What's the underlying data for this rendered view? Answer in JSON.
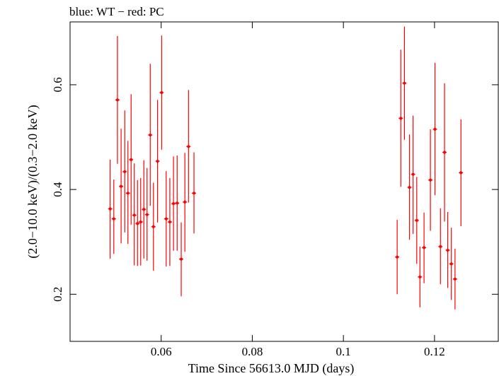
{
  "chart_data": {
    "type": "scatter",
    "title": "blue: WT − red: PC",
    "xlabel": "Time Since 56613.0 MJD (days)",
    "ylabel": "(2.0−10.0 keV)/(0.3−2.0 keV)",
    "xlim": [
      0.04,
      0.134
    ],
    "ylim": [
      0.11,
      0.72
    ],
    "xticks": [
      {
        "value": 0.06,
        "label": "0.06"
      },
      {
        "value": 0.08,
        "label": "0.08"
      },
      {
        "value": 0.1,
        "label": "0.1"
      },
      {
        "value": 0.12,
        "label": "0.12"
      }
    ],
    "yticks": [
      {
        "value": 0.2,
        "label": "0.2"
      },
      {
        "value": 0.4,
        "label": "0.4"
      },
      {
        "value": 0.6,
        "label": "0.6"
      }
    ],
    "grid": false,
    "series": [
      {
        "color": "#ff0000",
        "points": [
          {
            "x": 0.0488,
            "y": 0.363,
            "lo": 0.268,
            "hi": 0.457
          },
          {
            "x": 0.0496,
            "y": 0.344,
            "lo": 0.277,
            "hi": 0.419
          },
          {
            "x": 0.0504,
            "y": 0.571,
            "lo": 0.449,
            "hi": 0.693
          },
          {
            "x": 0.0512,
            "y": 0.406,
            "lo": 0.297,
            "hi": 0.516
          },
          {
            "x": 0.052,
            "y": 0.434,
            "lo": 0.318,
            "hi": 0.551
          },
          {
            "x": 0.0527,
            "y": 0.393,
            "lo": 0.296,
            "hi": 0.493
          },
          {
            "x": 0.0534,
            "y": 0.457,
            "lo": 0.333,
            "hi": 0.582
          },
          {
            "x": 0.0541,
            "y": 0.351,
            "lo": 0.255,
            "hi": 0.45
          },
          {
            "x": 0.0548,
            "y": 0.335,
            "lo": 0.254,
            "hi": 0.418
          },
          {
            "x": 0.0555,
            "y": 0.338,
            "lo": 0.255,
            "hi": 0.422
          },
          {
            "x": 0.0562,
            "y": 0.362,
            "lo": 0.268,
            "hi": 0.456
          },
          {
            "x": 0.0569,
            "y": 0.352,
            "lo": 0.264,
            "hi": 0.441
          },
          {
            "x": 0.0576,
            "y": 0.504,
            "lo": 0.369,
            "hi": 0.64
          },
          {
            "x": 0.0583,
            "y": 0.329,
            "lo": 0.245,
            "hi": 0.413
          },
          {
            "x": 0.0592,
            "y": 0.454,
            "lo": 0.337,
            "hi": 0.571
          },
          {
            "x": 0.0601,
            "y": 0.585,
            "lo": 0.476,
            "hi": 0.694
          },
          {
            "x": 0.0611,
            "y": 0.344,
            "lo": 0.253,
            "hi": 0.435
          },
          {
            "x": 0.0619,
            "y": 0.338,
            "lo": 0.254,
            "hi": 0.422
          },
          {
            "x": 0.0627,
            "y": 0.373,
            "lo": 0.283,
            "hi": 0.463
          },
          {
            "x": 0.0635,
            "y": 0.374,
            "lo": 0.283,
            "hi": 0.465
          },
          {
            "x": 0.0644,
            "y": 0.267,
            "lo": 0.196,
            "hi": 0.337
          },
          {
            "x": 0.0652,
            "y": 0.376,
            "lo": 0.281,
            "hi": 0.47
          },
          {
            "x": 0.066,
            "y": 0.482,
            "lo": 0.375,
            "hi": 0.59
          },
          {
            "x": 0.0672,
            "y": 0.393,
            "lo": 0.316,
            "hi": 0.471
          },
          {
            "x": 0.1118,
            "y": 0.271,
            "lo": 0.2,
            "hi": 0.342
          },
          {
            "x": 0.1126,
            "y": 0.536,
            "lo": 0.405,
            "hi": 0.667
          },
          {
            "x": 0.1134,
            "y": 0.603,
            "lo": 0.495,
            "hi": 0.711
          },
          {
            "x": 0.1145,
            "y": 0.404,
            "lo": 0.304,
            "hi": 0.505
          },
          {
            "x": 0.1153,
            "y": 0.429,
            "lo": 0.315,
            "hi": 0.541
          },
          {
            "x": 0.1161,
            "y": 0.341,
            "lo": 0.258,
            "hi": 0.424
          },
          {
            "x": 0.1168,
            "y": 0.233,
            "lo": 0.175,
            "hi": 0.291
          },
          {
            "x": 0.1177,
            "y": 0.289,
            "lo": 0.221,
            "hi": 0.356
          },
          {
            "x": 0.1191,
            "y": 0.418,
            "lo": 0.321,
            "hi": 0.515
          },
          {
            "x": 0.1201,
            "y": 0.515,
            "lo": 0.389,
            "hi": 0.642
          },
          {
            "x": 0.1213,
            "y": 0.291,
            "lo": 0.219,
            "hi": 0.364
          },
          {
            "x": 0.1222,
            "y": 0.471,
            "lo": 0.339,
            "hi": 0.603
          },
          {
            "x": 0.1229,
            "y": 0.284,
            "lo": 0.212,
            "hi": 0.357
          },
          {
            "x": 0.1237,
            "y": 0.258,
            "lo": 0.189,
            "hi": 0.327
          },
          {
            "x": 0.1245,
            "y": 0.229,
            "lo": 0.171,
            "hi": 0.287
          },
          {
            "x": 0.1258,
            "y": 0.432,
            "lo": 0.33,
            "hi": 0.534
          }
        ]
      }
    ]
  }
}
